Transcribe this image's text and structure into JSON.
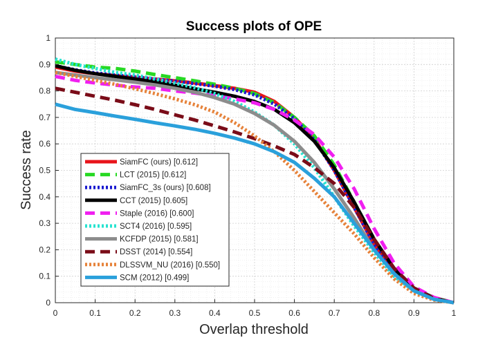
{
  "chart_data": {
    "type": "line",
    "title": "Success plots of OPE",
    "xlabel": "Overlap threshold",
    "ylabel": "Success rate",
    "xlim": [
      0,
      1
    ],
    "ylim": [
      0,
      1
    ],
    "xticks": [
      "0",
      "0.1",
      "0.2",
      "0.3",
      "0.4",
      "0.5",
      "0.6",
      "0.7",
      "0.8",
      "0.9",
      "1"
    ],
    "yticks": [
      "0",
      "0.1",
      "0.2",
      "0.3",
      "0.4",
      "0.5",
      "0.6",
      "0.7",
      "0.8",
      "0.9",
      "1"
    ],
    "grid": true,
    "legend_position": "lower-left",
    "x": [
      0,
      0.05,
      0.1,
      0.15,
      0.2,
      0.25,
      0.3,
      0.35,
      0.4,
      0.45,
      0.5,
      0.55,
      0.6,
      0.65,
      0.7,
      0.75,
      0.8,
      0.85,
      0.9,
      0.95,
      1.0
    ],
    "series": [
      {
        "name": "SiamFC (ours) [0.612]",
        "color": "#e8141b",
        "dash": "solid",
        "values": [
          0.89,
          0.875,
          0.865,
          0.858,
          0.852,
          0.845,
          0.838,
          0.83,
          0.82,
          0.81,
          0.795,
          0.76,
          0.7,
          0.62,
          0.5,
          0.36,
          0.22,
          0.12,
          0.05,
          0.015,
          0.0
        ]
      },
      {
        "name": "LCT (2015) [0.612]",
        "color": "#27d923",
        "dash": "dash",
        "values": [
          0.91,
          0.9,
          0.89,
          0.885,
          0.875,
          0.862,
          0.85,
          0.838,
          0.825,
          0.81,
          0.79,
          0.755,
          0.7,
          0.63,
          0.52,
          0.38,
          0.24,
          0.13,
          0.055,
          0.018,
          0.0
        ]
      },
      {
        "name": "SiamFC_3s (ours) [0.608]",
        "color": "#1a1ad0",
        "dash": "dot",
        "values": [
          0.895,
          0.88,
          0.868,
          0.86,
          0.853,
          0.845,
          0.837,
          0.828,
          0.818,
          0.805,
          0.785,
          0.75,
          0.695,
          0.615,
          0.5,
          0.36,
          0.22,
          0.12,
          0.05,
          0.015,
          0.0
        ]
      },
      {
        "name": "CCT (2015) [0.605]",
        "color": "#000000",
        "dash": "solid",
        "values": [
          0.895,
          0.878,
          0.865,
          0.855,
          0.845,
          0.835,
          0.822,
          0.808,
          0.795,
          0.78,
          0.76,
          0.73,
          0.68,
          0.61,
          0.51,
          0.38,
          0.24,
          0.13,
          0.055,
          0.018,
          0.0
        ]
      },
      {
        "name": "Staple (2016) [0.600]",
        "color": "#f01ff0",
        "dash": "dash",
        "values": [
          0.855,
          0.84,
          0.83,
          0.822,
          0.815,
          0.81,
          0.8,
          0.792,
          0.782,
          0.77,
          0.755,
          0.73,
          0.69,
          0.635,
          0.55,
          0.43,
          0.28,
          0.15,
          0.06,
          0.02,
          0.0
        ]
      },
      {
        "name": "SCT4 (2016) [0.595]",
        "color": "#27e3d0",
        "dash": "dot",
        "values": [
          0.92,
          0.9,
          0.885,
          0.87,
          0.86,
          0.845,
          0.83,
          0.812,
          0.79,
          0.76,
          0.72,
          0.67,
          0.6,
          0.51,
          0.4,
          0.29,
          0.19,
          0.1,
          0.045,
          0.014,
          0.0
        ]
      },
      {
        "name": "KCFDP (2015) [0.581]",
        "color": "#8c8c8c",
        "dash": "solid",
        "values": [
          0.87,
          0.86,
          0.85,
          0.842,
          0.833,
          0.823,
          0.81,
          0.795,
          0.775,
          0.75,
          0.715,
          0.67,
          0.61,
          0.53,
          0.43,
          0.32,
          0.2,
          0.11,
          0.045,
          0.013,
          0.0
        ]
      },
      {
        "name": "DSST (2014) [0.554]",
        "color": "#7a0c18",
        "dash": "dash",
        "values": [
          0.81,
          0.795,
          0.78,
          0.765,
          0.748,
          0.73,
          0.71,
          0.69,
          0.668,
          0.645,
          0.62,
          0.592,
          0.56,
          0.51,
          0.45,
          0.36,
          0.24,
          0.13,
          0.055,
          0.016,
          0.0
        ]
      },
      {
        "name": "DLSSVM_NU (2016) [0.550]",
        "color": "#e6823a",
        "dash": "dot",
        "values": [
          0.87,
          0.855,
          0.84,
          0.825,
          0.808,
          0.79,
          0.77,
          0.748,
          0.72,
          0.68,
          0.63,
          0.57,
          0.5,
          0.42,
          0.34,
          0.26,
          0.17,
          0.09,
          0.035,
          0.01,
          0.0
        ]
      },
      {
        "name": "SCM (2012) [0.499]",
        "color": "#2aa0db",
        "dash": "solid",
        "values": [
          0.75,
          0.73,
          0.718,
          0.705,
          0.693,
          0.68,
          0.668,
          0.655,
          0.64,
          0.622,
          0.6,
          0.57,
          0.53,
          0.47,
          0.4,
          0.3,
          0.2,
          0.11,
          0.045,
          0.013,
          0.0
        ]
      }
    ]
  }
}
